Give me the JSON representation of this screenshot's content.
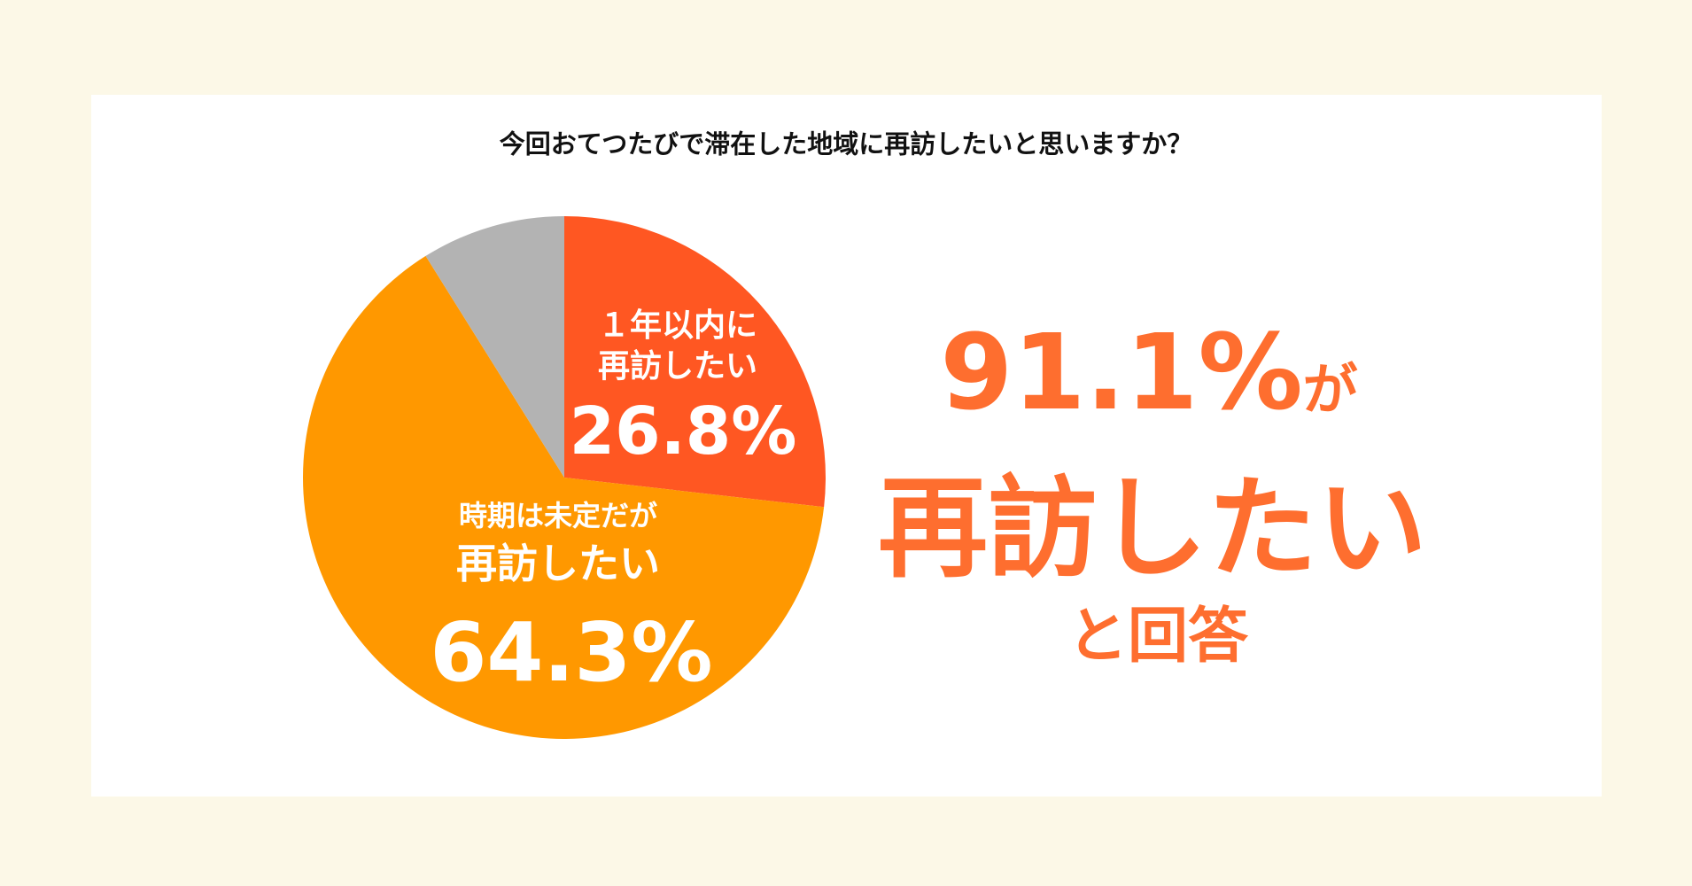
{
  "title": "今回おてつたびで滞在した地域に再訪したいと思いますか？",
  "chart_data": {
    "type": "pie",
    "title": "今回おてつたびで滞在した地域に再訪したいと思いますか？",
    "start": "top",
    "direction": "clockwise",
    "slices": [
      {
        "label_line1": "１年以内に",
        "label_line2": "再訪したい",
        "value": 26.8,
        "value_label": "26.8%",
        "color": "#ff5722"
      },
      {
        "label_line1": "時期は未定だが",
        "label_line2": "再訪したい",
        "value": 64.3,
        "value_label": "64.3%",
        "color": "#ff9800"
      },
      {
        "value": 8.9,
        "color": "#b3b3b3"
      }
    ]
  },
  "summary": {
    "line1": "91.1%",
    "line1_suffix": "が",
    "line2": "再訪したい",
    "line3": "と回答",
    "color": "#fe6e2f"
  },
  "colors": {
    "background": "#fcf8e7",
    "card": "#ffffff"
  }
}
